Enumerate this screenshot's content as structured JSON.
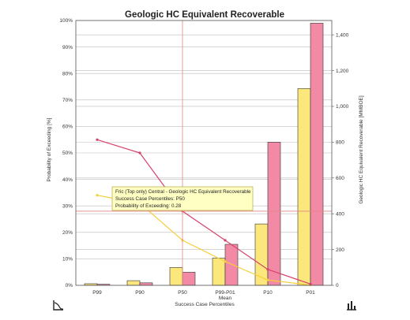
{
  "chart_data": {
    "type": "bar",
    "title": "Geologic HC Equivalent Recoverable",
    "categories": [
      "P99",
      "P90",
      "P50",
      "P99-P01\nMean",
      "P10",
      "P01"
    ],
    "xlabel": "Success Case Percentiles",
    "ylabel_left": "Probability of Exceeding [%]",
    "ylabel_right": "Geologic HC Equivalent Recoverable [MMBOE]",
    "ylim_left": [
      0,
      100
    ],
    "ylim_right": [
      0,
      1480
    ],
    "left_ticks": [
      "0%",
      "10%",
      "20%",
      "30%",
      "40%",
      "50%",
      "60%",
      "70%",
      "80%",
      "90%",
      "100%"
    ],
    "right_ticks": [
      "0",
      "200",
      "400",
      "600",
      "800",
      "1,000",
      "1,200",
      "1,400"
    ],
    "series": [
      {
        "kind": "bar",
        "axis": "right",
        "color": "#fbe77c",
        "values": [
          9,
          26,
          100,
          152,
          343,
          1100
        ]
      },
      {
        "kind": "bar",
        "axis": "right",
        "color": "#f28aa6",
        "values": [
          6,
          14,
          73,
          229,
          800,
          1465
        ]
      },
      {
        "kind": "line",
        "axis": "left",
        "color": "#f5cf3a",
        "values": [
          34,
          31,
          17,
          9,
          2,
          0.1
        ]
      },
      {
        "kind": "line",
        "axis": "left",
        "color": "#d7426b",
        "values": [
          55,
          50,
          28,
          17,
          6,
          0.5
        ]
      }
    ],
    "crosshair": {
      "category_index": 2,
      "y_percent": 28
    },
    "tooltip": {
      "lines": [
        "Fric (Top only) Central - Geologic HC Equivalent Recoverable",
        "Success Case Percentiles: P50",
        "Probability of Exceeding: 0.28"
      ]
    },
    "grid": true
  },
  "icons": {
    "bottom_left": "distribution-icon",
    "bottom_right": "bar-chart-icon"
  },
  "colors": {
    "gridline": "#bdbdbd",
    "crosshair": "#e08585",
    "tooltip_bg": "#ffffc4",
    "tooltip_border": "#b5a940"
  }
}
